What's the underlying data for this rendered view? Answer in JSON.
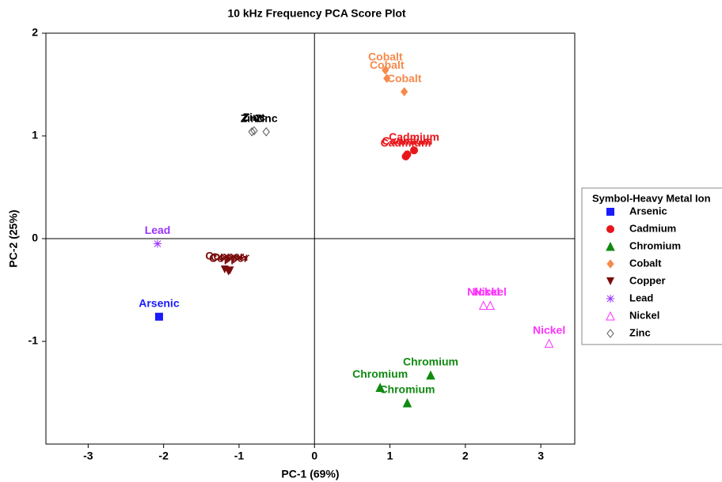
{
  "chart_data": {
    "type": "scatter",
    "title": "10 kHz Frequency PCA Score Plot",
    "x_label": "PC-1 (69%)",
    "y_label": "PC-2 (25%)",
    "legend_title": "Symbol-Heavy Metal Ion",
    "legend": "right",
    "xlim": [
      -3.56,
      3.45
    ],
    "ylim": [
      -2,
      2
    ],
    "xticks": [
      -3,
      -2,
      -1,
      0,
      1,
      2,
      3
    ],
    "yticks": [
      -1,
      0,
      1,
      2
    ],
    "series": [
      {
        "name": "Arsenic",
        "color": "#1a1aff",
        "marker": "square",
        "x": [
          -2.06
        ],
        "values": [
          -0.76
        ]
      },
      {
        "name": "Cadmium",
        "color": "#e8161a",
        "marker": "circle",
        "x": [
          1.21,
          1.23,
          1.32
        ],
        "values": [
          0.8,
          0.82,
          0.86
        ]
      },
      {
        "name": "Chromium",
        "color": "#118a11",
        "marker": "triangle",
        "x": [
          1.54,
          0.87,
          1.23
        ],
        "values": [
          -1.33,
          -1.45,
          -1.6
        ]
      },
      {
        "name": "Cobalt",
        "color": "#f58a4c",
        "marker": "diamond",
        "x": [
          0.94,
          0.96,
          1.19
        ],
        "values": [
          1.64,
          1.56,
          1.43
        ]
      },
      {
        "name": "Copper",
        "color": "#7a0c0c",
        "marker": "triangle-down",
        "x": [
          -1.19,
          -1.14,
          -1.12
        ],
        "values": [
          -0.3,
          -0.32,
          -0.31
        ]
      },
      {
        "name": "Lead",
        "color": "#9933ff",
        "marker": "star",
        "x": [
          -2.08
        ],
        "values": [
          -0.05
        ]
      },
      {
        "name": "Nickel",
        "color": "#ff33ff",
        "marker": "triangle-open",
        "x": [
          2.24,
          2.33,
          3.11
        ],
        "values": [
          -0.65,
          -0.65,
          -1.02
        ]
      },
      {
        "name": "Zinc",
        "color": "#555555",
        "marker": "diamond-open",
        "x": [
          -0.83,
          -0.8,
          -0.64
        ],
        "values": [
          1.04,
          1.05,
          1.04
        ]
      }
    ]
  }
}
